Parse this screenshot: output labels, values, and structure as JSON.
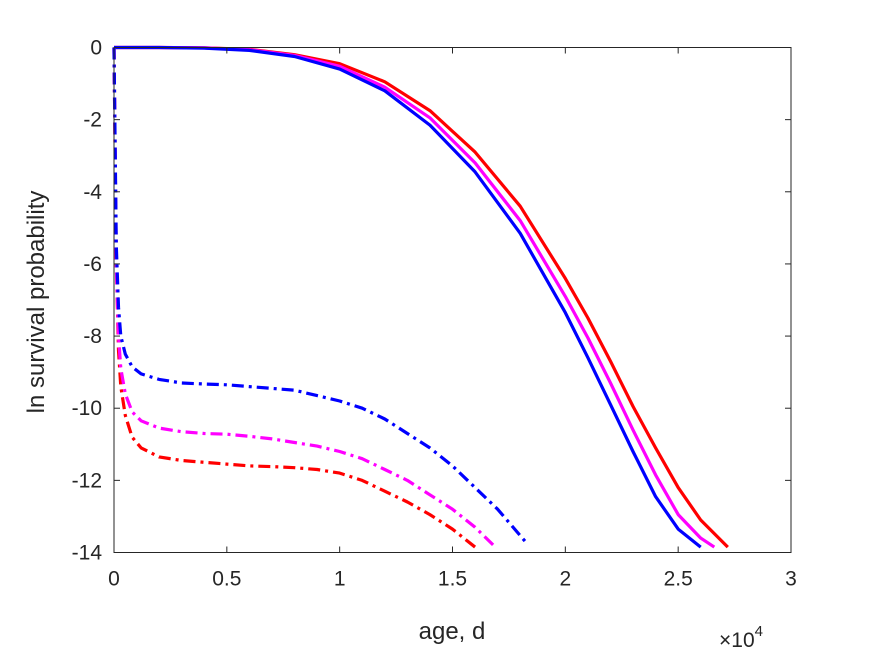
{
  "chart_data": {
    "type": "line",
    "title": "",
    "xlabel": "age, d",
    "ylabel": "ln survival probability",
    "x_multiplier_label": "×10",
    "x_multiplier_exponent": "4",
    "xlim": [
      0,
      30000
    ],
    "ylim": [
      -14,
      0
    ],
    "xticks": [
      0,
      5000,
      10000,
      15000,
      20000,
      25000,
      30000
    ],
    "xtick_labels": [
      "0",
      "0.5",
      "1",
      "1.5",
      "2",
      "2.5",
      "3"
    ],
    "yticks": [
      0,
      -2,
      -4,
      -6,
      -8,
      -10,
      -12,
      -14
    ],
    "ytick_labels": [
      "0",
      "-2",
      "-4",
      "-6",
      "-8",
      "-10",
      "-12",
      "-14"
    ],
    "grid": false,
    "legend": "none",
    "series": [
      {
        "color": "#ff0000",
        "style": "solid",
        "x": [
          0,
          2000,
          4000,
          6000,
          8000,
          10000,
          12000,
          14000,
          16000,
          18000,
          20000,
          21000,
          22000,
          23000,
          24000,
          25000,
          26000,
          27200
        ],
        "y": [
          0,
          0,
          -0.01,
          -0.05,
          -0.2,
          -0.45,
          -0.95,
          -1.75,
          -2.9,
          -4.4,
          -6.4,
          -7.5,
          -8.7,
          -9.95,
          -11.1,
          -12.2,
          -13.1,
          -13.85
        ]
      },
      {
        "color": "#ff00ff",
        "style": "solid",
        "x": [
          0,
          2000,
          4000,
          6000,
          8000,
          10000,
          12000,
          14000,
          16000,
          18000,
          20000,
          21000,
          22000,
          23000,
          24000,
          25000,
          26000,
          26600
        ],
        "y": [
          0,
          0,
          -0.01,
          -0.06,
          -0.22,
          -0.52,
          -1.1,
          -1.95,
          -3.2,
          -4.8,
          -6.9,
          -8.05,
          -9.3,
          -10.6,
          -11.85,
          -12.95,
          -13.6,
          -13.85
        ]
      },
      {
        "color": "#0000ff",
        "style": "solid",
        "x": [
          0,
          2000,
          4000,
          6000,
          8000,
          10000,
          12000,
          14000,
          16000,
          18000,
          20000,
          21000,
          22000,
          23000,
          24000,
          25000,
          26000
        ],
        "y": [
          0,
          0,
          -0.02,
          -0.08,
          -0.25,
          -0.6,
          -1.2,
          -2.15,
          -3.45,
          -5.15,
          -7.35,
          -8.6,
          -9.9,
          -11.2,
          -12.45,
          -13.35,
          -13.85
        ]
      },
      {
        "color": "#ff0000",
        "style": "dashdot",
        "x": [
          0,
          100,
          200,
          300,
          500,
          800,
          1200,
          2000,
          3000,
          4000,
          5000,
          6000,
          7000,
          8000,
          9000,
          10000,
          11000,
          12000,
          13000,
          14000,
          15000,
          16000
        ],
        "y": [
          0,
          -6.0,
          -8.4,
          -9.4,
          -10.2,
          -10.8,
          -11.1,
          -11.35,
          -11.45,
          -11.5,
          -11.55,
          -11.6,
          -11.62,
          -11.65,
          -11.7,
          -11.8,
          -12.0,
          -12.3,
          -12.6,
          -12.95,
          -13.35,
          -13.85
        ]
      },
      {
        "color": "#ff00ff",
        "style": "dashdot",
        "x": [
          0,
          100,
          200,
          300,
          500,
          800,
          1200,
          2000,
          3000,
          4000,
          5000,
          6000,
          7000,
          8000,
          9000,
          10000,
          11000,
          12000,
          13000,
          14000,
          15000,
          16000,
          16900
        ],
        "y": [
          0,
          -6.0,
          -8.0,
          -8.9,
          -9.6,
          -10.1,
          -10.35,
          -10.55,
          -10.65,
          -10.7,
          -10.72,
          -10.78,
          -10.85,
          -10.95,
          -11.05,
          -11.2,
          -11.4,
          -11.7,
          -12.0,
          -12.4,
          -12.8,
          -13.3,
          -13.85
        ]
      },
      {
        "color": "#0000ff",
        "style": "dashdot",
        "x": [
          0,
          100,
          200,
          300,
          500,
          800,
          1200,
          2000,
          3000,
          4000,
          5000,
          6000,
          7000,
          8000,
          9000,
          10000,
          11000,
          12000,
          13000,
          14000,
          15000,
          16000,
          17000,
          18300
        ],
        "y": [
          0,
          -5.5,
          -7.2,
          -8.0,
          -8.5,
          -8.85,
          -9.05,
          -9.2,
          -9.3,
          -9.33,
          -9.35,
          -9.4,
          -9.45,
          -9.5,
          -9.65,
          -9.8,
          -10.0,
          -10.3,
          -10.7,
          -11.1,
          -11.6,
          -12.2,
          -12.8,
          -13.75
        ]
      }
    ]
  }
}
